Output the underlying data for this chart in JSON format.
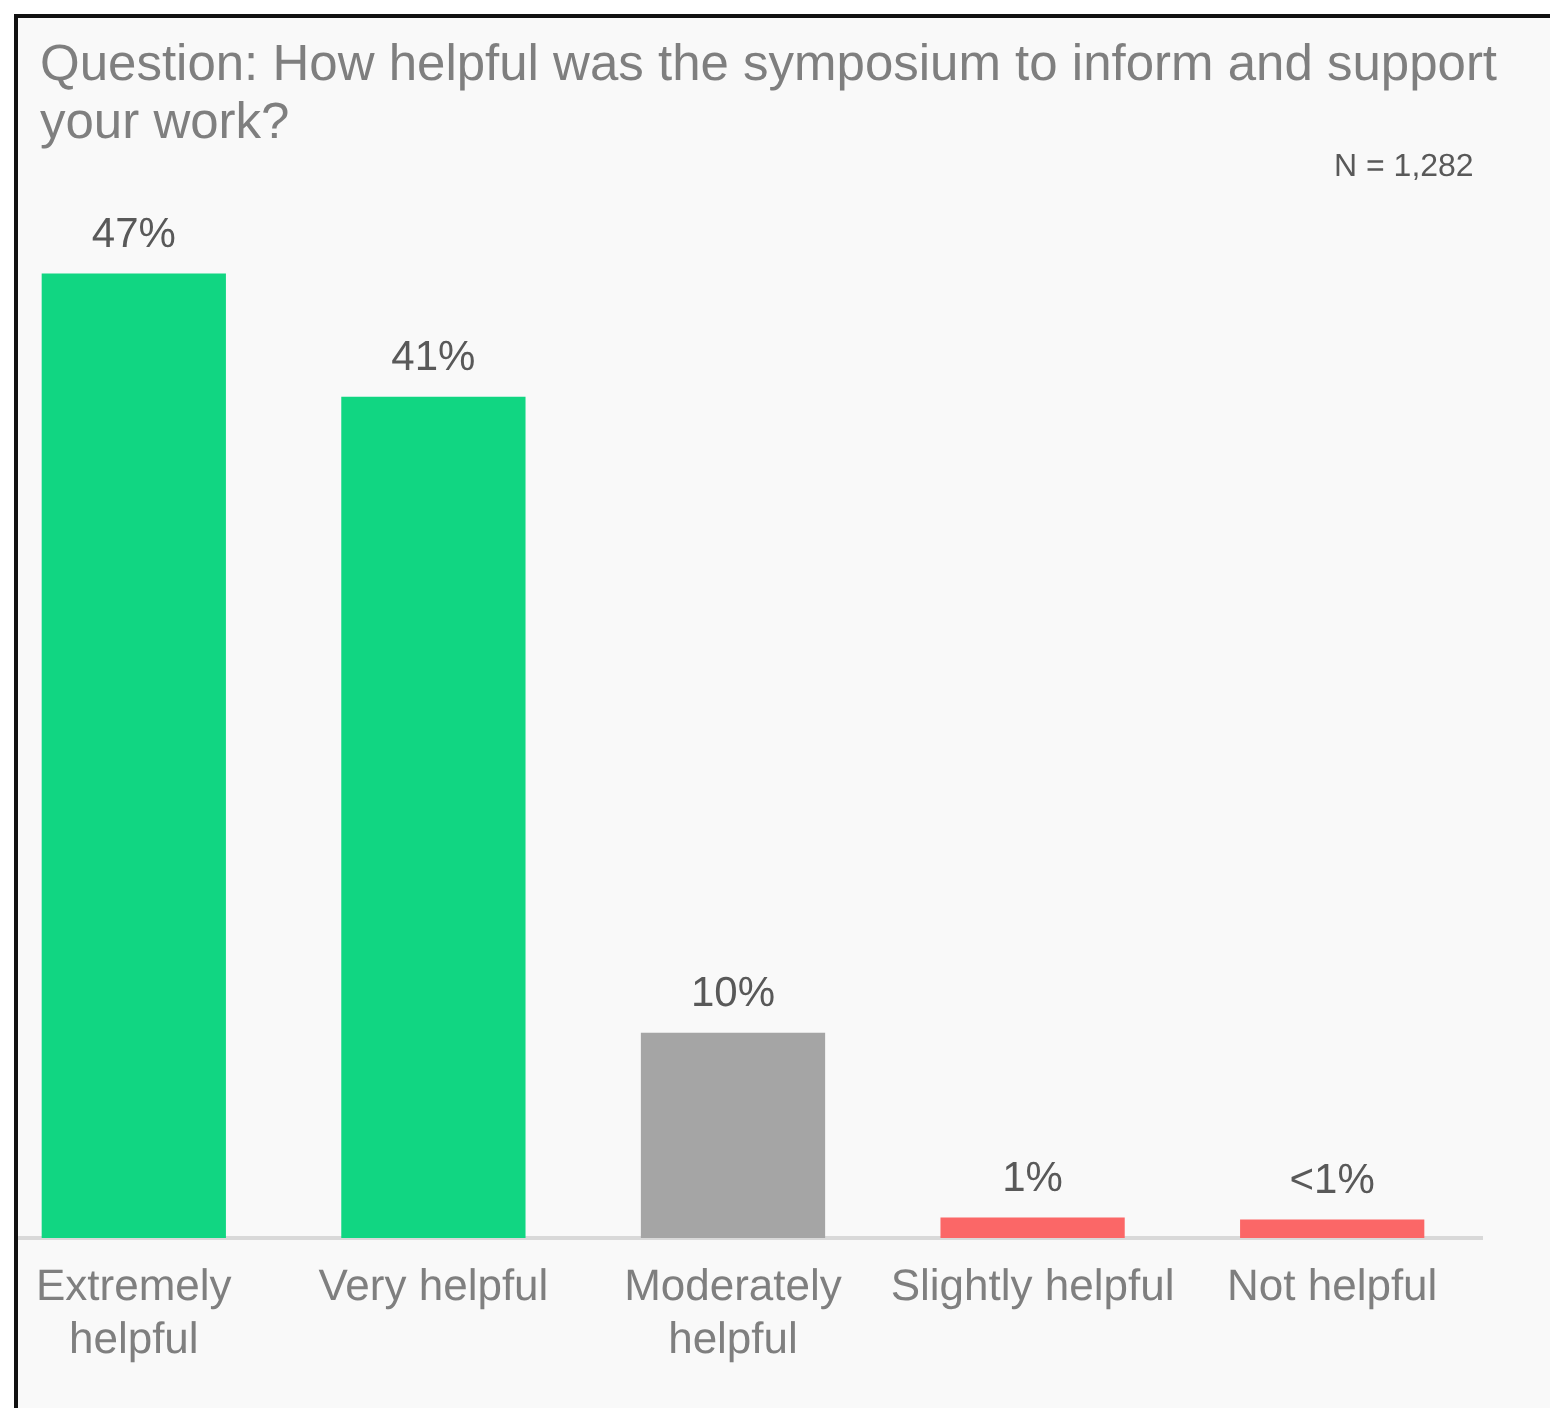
{
  "chart_data": {
    "type": "bar",
    "title": "Question: How helpful was the symposium to inform and support your work?",
    "annotations": [
      "N = 1,282"
    ],
    "categories": [
      "Extremely helpful",
      "Very helpful",
      "Moderately helpful",
      "Slightly helpful",
      "Not helpful"
    ],
    "values": [
      47,
      41,
      10,
      1,
      0.9
    ],
    "colors": [
      "#11d682",
      "#11d682",
      "#a5a5a5",
      "#fb6767",
      "#fb6767"
    ],
    "value_labels": [
      "47%",
      "41%",
      "10%",
      "1%",
      "<1%"
    ]
  }
}
